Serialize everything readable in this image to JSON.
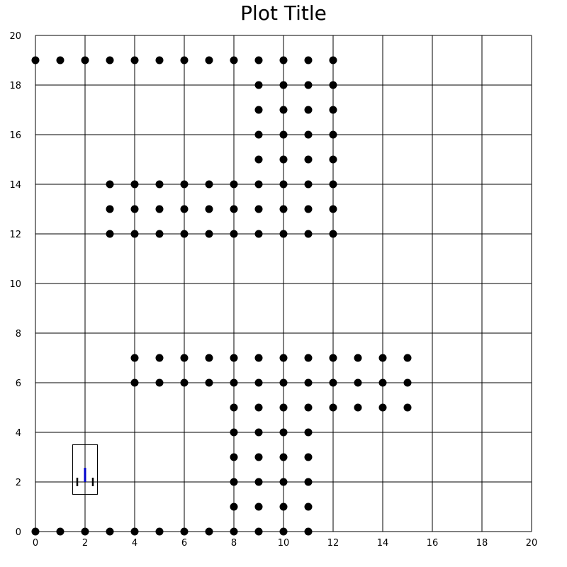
{
  "chart_data": {
    "type": "scatter",
    "title": "Plot Title",
    "xlabel": "",
    "ylabel": "",
    "xlim": [
      0,
      20
    ],
    "ylim": [
      0,
      20
    ],
    "x_ticks": [
      0,
      2,
      4,
      6,
      8,
      10,
      12,
      14,
      16,
      18,
      20
    ],
    "y_ticks": [
      0,
      2,
      4,
      6,
      8,
      10,
      12,
      14,
      16,
      18,
      20
    ],
    "grid": true,
    "grid_step": 2,
    "legend": "none",
    "marker_color": "#000000",
    "agent": {
      "box_x": [
        1.5,
        2.5
      ],
      "box_y": [
        1.5,
        3.5
      ],
      "position": [
        2,
        2
      ],
      "heading_deg": 90,
      "heading_color": "#0000cc"
    },
    "series": [
      {
        "points": [
          [
            0,
            19
          ],
          [
            1,
            19
          ],
          [
            2,
            19
          ],
          [
            3,
            19
          ],
          [
            4,
            19
          ],
          [
            5,
            19
          ],
          [
            6,
            19
          ],
          [
            7,
            19
          ],
          [
            8,
            19
          ],
          [
            9,
            19
          ],
          [
            10,
            19
          ],
          [
            11,
            19
          ],
          [
            12,
            19
          ],
          [
            9,
            18
          ],
          [
            10,
            18
          ],
          [
            11,
            18
          ],
          [
            12,
            18
          ],
          [
            9,
            17
          ],
          [
            10,
            17
          ],
          [
            11,
            17
          ],
          [
            12,
            17
          ],
          [
            9,
            16
          ],
          [
            10,
            16
          ],
          [
            11,
            16
          ],
          [
            12,
            16
          ],
          [
            9,
            15
          ],
          [
            10,
            15
          ],
          [
            11,
            15
          ],
          [
            12,
            15
          ],
          [
            3,
            14
          ],
          [
            4,
            14
          ],
          [
            5,
            14
          ],
          [
            6,
            14
          ],
          [
            7,
            14
          ],
          [
            8,
            14
          ],
          [
            9,
            14
          ],
          [
            10,
            14
          ],
          [
            11,
            14
          ],
          [
            12,
            14
          ],
          [
            3,
            13
          ],
          [
            4,
            13
          ],
          [
            5,
            13
          ],
          [
            6,
            13
          ],
          [
            7,
            13
          ],
          [
            8,
            13
          ],
          [
            9,
            13
          ],
          [
            10,
            13
          ],
          [
            11,
            13
          ],
          [
            12,
            13
          ],
          [
            3,
            12
          ],
          [
            4,
            12
          ],
          [
            5,
            12
          ],
          [
            6,
            12
          ],
          [
            7,
            12
          ],
          [
            8,
            12
          ],
          [
            9,
            12
          ],
          [
            10,
            12
          ],
          [
            11,
            12
          ],
          [
            12,
            12
          ],
          [
            4,
            7
          ],
          [
            5,
            7
          ],
          [
            6,
            7
          ],
          [
            7,
            7
          ],
          [
            8,
            7
          ],
          [
            9,
            7
          ],
          [
            10,
            7
          ],
          [
            11,
            7
          ],
          [
            12,
            7
          ],
          [
            13,
            7
          ],
          [
            14,
            7
          ],
          [
            15,
            7
          ],
          [
            4,
            6
          ],
          [
            5,
            6
          ],
          [
            6,
            6
          ],
          [
            7,
            6
          ],
          [
            8,
            6
          ],
          [
            9,
            6
          ],
          [
            10,
            6
          ],
          [
            11,
            6
          ],
          [
            12,
            6
          ],
          [
            13,
            6
          ],
          [
            14,
            6
          ],
          [
            15,
            6
          ],
          [
            8,
            5
          ],
          [
            9,
            5
          ],
          [
            10,
            5
          ],
          [
            11,
            5
          ],
          [
            12,
            5
          ],
          [
            13,
            5
          ],
          [
            14,
            5
          ],
          [
            15,
            5
          ],
          [
            8,
            4
          ],
          [
            9,
            4
          ],
          [
            10,
            4
          ],
          [
            11,
            4
          ],
          [
            8,
            3
          ],
          [
            9,
            3
          ],
          [
            10,
            3
          ],
          [
            11,
            3
          ],
          [
            8,
            2
          ],
          [
            9,
            2
          ],
          [
            10,
            2
          ],
          [
            11,
            2
          ],
          [
            8,
            1
          ],
          [
            9,
            1
          ],
          [
            10,
            1
          ],
          [
            11,
            1
          ],
          [
            0,
            0
          ],
          [
            1,
            0
          ],
          [
            2,
            0
          ],
          [
            3,
            0
          ],
          [
            4,
            0
          ],
          [
            5,
            0
          ],
          [
            6,
            0
          ],
          [
            7,
            0
          ],
          [
            8,
            0
          ],
          [
            9,
            0
          ],
          [
            10,
            0
          ],
          [
            11,
            0
          ]
        ]
      }
    ]
  }
}
